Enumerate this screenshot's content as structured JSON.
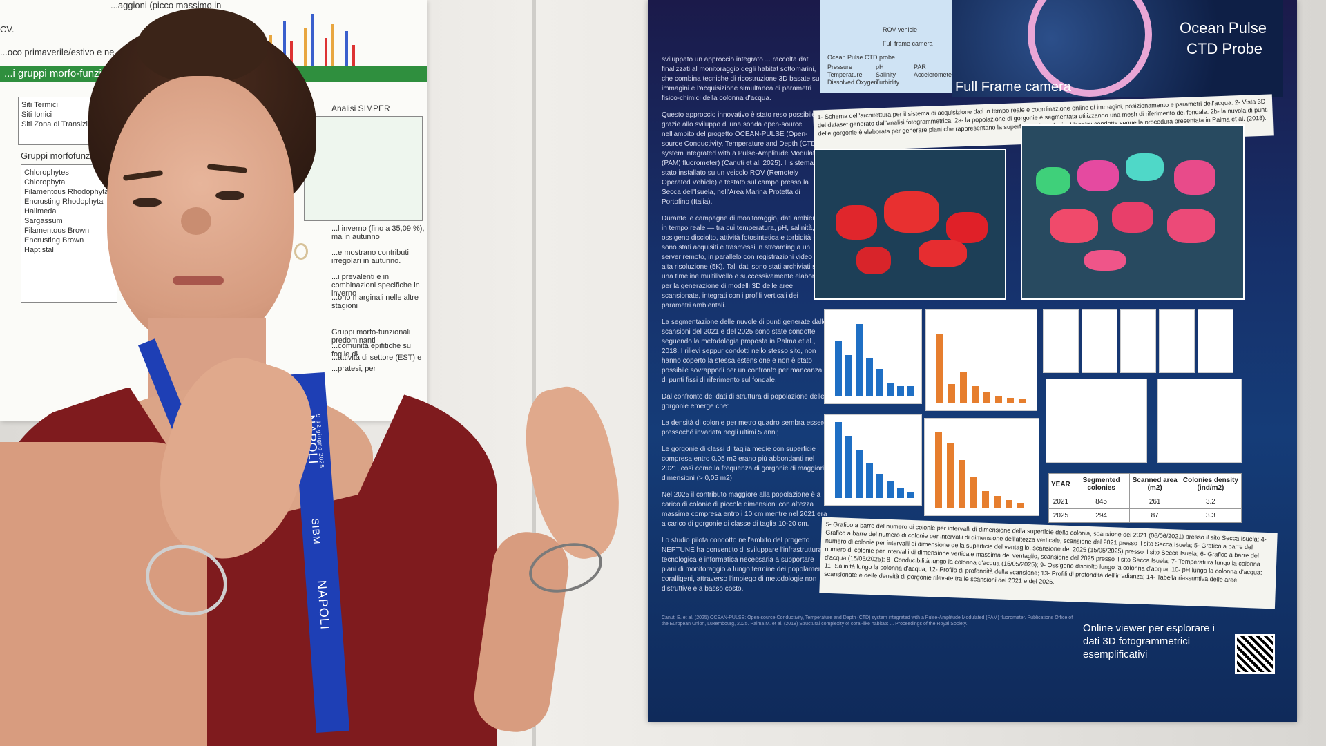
{
  "left_poster": {
    "header_line1": "...aggioni (picco massimo in",
    "header_line2": "CV.",
    "header_line3": "...oco primaverile/estivo e ne...",
    "green_bar": "...i gruppi morfo-funzi...",
    "sites": [
      "Siti Termici",
      "Siti Ionici",
      "Siti Zona di Transizione"
    ],
    "groups_title": "Gruppi morfofunzionali",
    "table_title": "Analisi SIMPER",
    "legend_items": [
      "Chlorophytes",
      "Chlorophyta",
      "Filamentous Rhodophyta",
      "Encrusting Rhodophyta",
      "Halimeda",
      "Sargassum",
      "Filamentous Brown",
      "Encrusting Brown",
      "Haptistal"
    ],
    "body_lines": [
      "...l inverno (fino a 35,09 %), ma in autunno",
      "...e mostrano contributi irregolari in autunno.",
      "...i prevalenti e in combinazioni specifiche in inverno",
      "...ono marginali nelle altre stagioni",
      "Gruppi morfo-funzionali predominanti",
      "...comunità epifitiche su foglie di",
      "...attività di settore (EST) e",
      "...pratesi, per"
    ]
  },
  "right_poster": {
    "intro": "sviluppato un approccio integrato ... raccolta dati finalizzati al monitoraggio degli habitat sottomarini, che combina tecniche di ricostruzione 3D basate su immagini e l'acquisizione simultanea di parametri fisico-chimici della colonna d'acqua.",
    "para1": "Questo approccio innovativo è stato reso possibile grazie allo sviluppo di una sonda open-source nell'ambito del progetto OCEAN-PULSE (Open-source Conductivity, Temperature and Depth (CTD) system integrated with a Pulse-Amplitude Modulated (PAM) fluorometer) (Canuti et al. 2025). Il sistema è stato installato su un veicolo ROV (Remotely Operated Vehicle) e testato sul campo presso la Secca dell'Isuela, nell'Area Marina Protetta di Portofino (Italia).",
    "para2": "Durante le campagne di monitoraggio, dati ambientali in tempo reale — tra cui temperatura, pH, salinità, ossigeno disciolto, attività fotosintetica e torbidità — sono stati acquisiti e trasmessi in streaming a un server remoto, in parallelo con registrazioni video ad alta risoluzione (5K). Tali dati sono stati archiviati su una timeline multilivello e successivamente elaborati per la generazione di modelli 3D delle aree scansionate, integrati con i profili verticali dei parametri ambientali.",
    "para3": "La segmentazione delle nuvole di punti generate dalle scansioni del 2021 e del 2025 sono state condotte seguendo la metodologia proposta in Palma et al., 2018. I rilievi seppur condotti nello stesso sito, non hanno coperto la stessa estensione e non è stato possibile sovrapporli per un confronto per mancanza di punti fissi di riferimento sul fondale.",
    "para4": "Dal confronto dei dati di struttura di popolazione delle gorgonie emerge che:",
    "bullets": [
      "La densità di colonie per metro quadro sembra essere pressoché invariata negli ultimi 5 anni;",
      "Le gorgonie di classi di taglia medie con superficie compresa entro 0,05 m2 erano più abbondanti nel 2021, così come la frequenza di gorgonie di maggiori dimensioni (> 0,05 m2)",
      "Nel 2025 il contributo maggiore alla popolazione è a carico di colonie di piccole dimensioni con altezza massima compresa entro i 10 cm mentre nel 2021 era a carico di gorgonie di classe di taglia 10-20 cm."
    ],
    "para5": "Lo studio pilota condotto nell'ambito del progetto NEPTUNE ha consentito di sviluppare l'infrastruttura tecnologica e informatica necessaria a supportare piani di monitoraggio a lungo termine dei popolamenti coralligeni, attraverso l'impiego di metodologie non distruttive e a basso costo.",
    "fig_rov": "ROV vehicle",
    "fig_cam": "Full frame camera",
    "fig_ctd": "Ocean Pulse CTD probe",
    "fig_params": [
      "Pressure",
      "Temperature",
      "Dissolved Oxygen",
      "pH",
      "Salinity",
      "Turbidity",
      "PAR",
      "Accelerometer"
    ],
    "label_full_frame": "Full Frame camera",
    "label_ocean_pulse": "Ocean Pulse",
    "label_ctd_probe": "CTD Probe",
    "caption1": "1- Schema dell'architettura per il sistema di acquisizione dati in tempo reale e coordinazione online di immagini, posizionamento e parametri dell'acqua. 2- Vista 3D del dataset generato dall'analisi fotogrammetrica. 2a- la popolazione di gorgonie è segmentata utilizzando una mesh di riferimento del fondale. 2b- la nuvola di punti delle gorgonie è elaborata per generare piani che rappresentano la superficie della colonia. L'analisi condotta segue la procedura presentata in Palma et al. (2018).",
    "caption2": "5- Grafico a barre del numero di colonie per intervalli di dimensione della superficie della colonia, scansione del 2021 (06/06/2021) presso il sito Secca Isuela; 4- Grafico a barre del numero di colonie per intervalli di dimensione dell'altezza verticale, scansione del 2021 presso il sito Secca Isuela; 5- Grafico a barre del numero di colonie per intervalli di dimensione della superficie del ventaglio, scansione del 2025 (15/05/2025) presso il sito Secca Isuela; 6- Grafico a barre del numero di colonie per intervalli di dimensione verticale massima del ventaglio, scansione del 2025 presso il sito Secca Isuela; 7- Temperatura lungo la colonna d'acqua (15/05/2025); 8- Conducibilità lungo la colonna d'acqua (15/05/2025); 9- Ossigeno disciolto lungo la colonna d'acqua; 10- pH lungo la colonna d'acqua; 11- Salinità lungo la colonna d'acqua; 12- Profilo di profondità della scansione; 13- Profili di profondità dell'irradianza; 14- Tabella riassuntiva delle aree scansionate e delle densità di gorgonie rilevate tra le scansioni del 2021 e del 2025.",
    "viewer_text": "Online viewer per esplorare i dati 3D fotogrammetrici esemplificativi",
    "references": "Canuti E. et al. (2025) OCEAN-PULSE: Open-source Conductivity, Temperature and Depth (CTD) system integrated with a Pulse-Amplitude Modulated (PAM) fluorometer. Publications Office of the European Union, Luxembourg, 2025. Palma M. et al. (2018) Structural complexity of coral-like habitats ... Proceedings of the Royal Society.",
    "table": {
      "headers": [
        "YEAR",
        "Segmented colonies",
        "Scanned area (m2)",
        "Colonies density (ind/m2)"
      ],
      "rows": [
        [
          "2021",
          "845",
          "261",
          "3.2"
        ],
        [
          "2025",
          "294",
          "87",
          "3.3"
        ]
      ]
    }
  },
  "lanyard": {
    "text1": "NAPOLI",
    "text2": "SIBM",
    "text3": "NAPOLI",
    "small": "9-12 giugno 2025"
  }
}
